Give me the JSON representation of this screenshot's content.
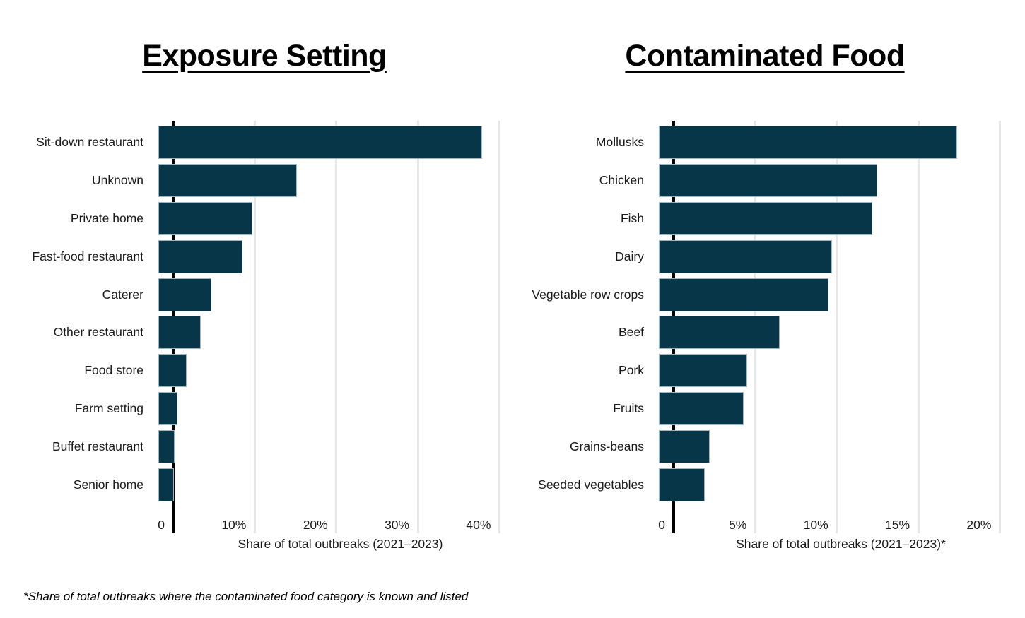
{
  "footnote": "*Share of total outbreaks where the contaminated food category is known and listed",
  "colors": {
    "bar_fill": "#073648",
    "bar_border": "#9fb6c0",
    "gridline": "#e7e7e7",
    "axis_line": "#000000",
    "text": "#1a1a1a"
  },
  "chart_data": [
    {
      "type": "bar",
      "orientation": "horizontal",
      "title": "Exposure Setting",
      "xlabel": "Share of total outbreaks (2021–2023)",
      "xlim": [
        0,
        41
      ],
      "grid": true,
      "legend": false,
      "xticks": [
        {
          "value": 0,
          "label": "0"
        },
        {
          "value": 10,
          "label": "10%"
        },
        {
          "value": 20,
          "label": "20%"
        },
        {
          "value": 30,
          "label": "30%"
        },
        {
          "value": 40,
          "label": "40%"
        }
      ],
      "categories": [
        "Sit-down restaurant",
        "Unknown",
        "Private home",
        "Fast-food restaurant",
        "Caterer",
        "Other restaurant",
        "Food store",
        "Farm setting",
        "Buffet restaurant",
        "Senior home"
      ],
      "values": [
        39.7,
        17.0,
        11.5,
        10.3,
        6.5,
        5.2,
        3.5,
        2.3,
        2.0,
        1.9
      ]
    },
    {
      "type": "bar",
      "orientation": "horizontal",
      "title": "Contaminated Food",
      "xlabel": "Share of total outbreaks (2021–2023)*",
      "xlim": [
        0,
        20.5
      ],
      "grid": true,
      "legend": false,
      "xticks": [
        {
          "value": 0,
          "label": "0"
        },
        {
          "value": 5,
          "label": "5%"
        },
        {
          "value": 10,
          "label": "10%"
        },
        {
          "value": 15,
          "label": "15%"
        },
        {
          "value": 20,
          "label": "20%"
        }
      ],
      "categories": [
        "Mollusks",
        "Chicken",
        "Fish",
        "Dairy",
        "Vegetable row crops",
        "Beef",
        "Pork",
        "Fruits",
        "Grains-beans",
        "Seeded vegetables"
      ],
      "values": [
        18.3,
        13.4,
        13.1,
        10.6,
        10.4,
        7.4,
        5.4,
        5.2,
        3.1,
        2.8
      ]
    }
  ]
}
